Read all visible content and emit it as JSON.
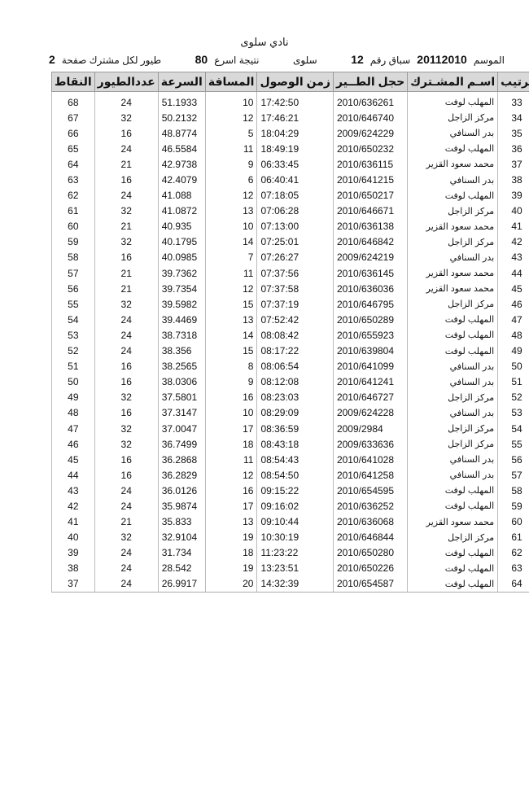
{
  "header": {
    "club": "نادي سلوى",
    "season_label": "الموسم",
    "season": "20112010",
    "race_label": "سباق رقم",
    "race_number": "12",
    "location": "سلوى",
    "fastest_label": "نتيجة اسرع",
    "fastest_count": "80",
    "per_member_label": "طيور لكل مشترك صفحة",
    "page": "2"
  },
  "columns": [
    "ترتيب",
    "اسـم المشـترك",
    "حجل الطــير",
    "زمن الوصول",
    "المسافة",
    "السرعة",
    "عددالطيور",
    "النقاط"
  ],
  "rows": [
    [
      "33",
      "المهلب لوفت",
      "2010/636261",
      "17:42:50",
      "10",
      "51.1933",
      "24",
      "68"
    ],
    [
      "34",
      "مركز الزاجل",
      "2010/646740",
      "17:46:21",
      "12",
      "50.2132",
      "32",
      "67"
    ],
    [
      "35",
      "بدر السنافي",
      "2009/624229",
      "18:04:29",
      "5",
      "48.8774",
      "16",
      "66"
    ],
    [
      "36",
      "المهلب لوفت",
      "2010/650232",
      "18:49:19",
      "11",
      "46.5584",
      "24",
      "65"
    ],
    [
      "37",
      "محمد سعود القزير",
      "2010/636115",
      "06:33:45",
      "9",
      "42.9738",
      "21",
      "64"
    ],
    [
      "38",
      "بدر السنافي",
      "2010/641215",
      "06:40:41",
      "6",
      "42.4079",
      "16",
      "63"
    ],
    [
      "39",
      "المهلب لوفت",
      "2010/650217",
      "07:18:05",
      "12",
      "41.088",
      "24",
      "62"
    ],
    [
      "40",
      "مركز الزاجل",
      "2010/646671",
      "07:06:28",
      "13",
      "41.0872",
      "32",
      "61"
    ],
    [
      "41",
      "محمد سعود القزير",
      "2010/636138",
      "07:13:00",
      "10",
      "40.935",
      "21",
      "60"
    ],
    [
      "42",
      "مركز الزاجل",
      "2010/646842",
      "07:25:01",
      "14",
      "40.1795",
      "32",
      "59"
    ],
    [
      "43",
      "بدر السنافي",
      "2009/624219",
      "07:26:27",
      "7",
      "40.0985",
      "16",
      "58"
    ],
    [
      "44",
      "محمد سعود القزير",
      "2010/636145",
      "07:37:56",
      "11",
      "39.7362",
      "21",
      "57"
    ],
    [
      "45",
      "محمد سعود القزير",
      "2010/636036",
      "07:37:58",
      "12",
      "39.7354",
      "21",
      "56"
    ],
    [
      "46",
      "مركز الزاجل",
      "2010/646795",
      "07:37:19",
      "15",
      "39.5982",
      "32",
      "55"
    ],
    [
      "47",
      "المهلب لوفت",
      "2010/650289",
      "07:52:42",
      "13",
      "39.4469",
      "24",
      "54"
    ],
    [
      "48",
      "المهلب لوفت",
      "2010/655923",
      "08:08:42",
      "14",
      "38.7318",
      "24",
      "53"
    ],
    [
      "49",
      "المهلب لوفت",
      "2010/639804",
      "08:17:22",
      "15",
      "38.356",
      "24",
      "52"
    ],
    [
      "50",
      "بدر السنافي",
      "2010/641099",
      "08:06:54",
      "8",
      "38.2565",
      "16",
      "51"
    ],
    [
      "51",
      "بدر السنافي",
      "2010/641241",
      "08:12:08",
      "9",
      "38.0306",
      "16",
      "50"
    ],
    [
      "52",
      "مركز الزاجل",
      "2010/646727",
      "08:23:03",
      "16",
      "37.5801",
      "32",
      "49"
    ],
    [
      "53",
      "بدر السنافي",
      "2009/624228",
      "08:29:09",
      "10",
      "37.3147",
      "16",
      "48"
    ],
    [
      "54",
      "مركز الزاجل",
      "2009/2984",
      "08:36:59",
      "17",
      "37.0047",
      "32",
      "47"
    ],
    [
      "55",
      "مركز الزاجل",
      "2009/633636",
      "08:43:18",
      "18",
      "36.7499",
      "32",
      "46"
    ],
    [
      "56",
      "بدر السنافي",
      "2010/641028",
      "08:54:43",
      "11",
      "36.2868",
      "16",
      "45"
    ],
    [
      "57",
      "بدر السنافي",
      "2010/641258",
      "08:54:50",
      "12",
      "36.2829",
      "16",
      "44"
    ],
    [
      "58",
      "المهلب لوفت",
      "2010/654595",
      "09:15:22",
      "16",
      "36.0126",
      "24",
      "43"
    ],
    [
      "59",
      "المهلب لوفت",
      "2010/636252",
      "09:16:02",
      "17",
      "35.9874",
      "24",
      "42"
    ],
    [
      "60",
      "محمد سعود القزير",
      "2010/636068",
      "09:10:44",
      "13",
      "35.833",
      "21",
      "41"
    ],
    [
      "61",
      "مركز الزاجل",
      "2010/646844",
      "10:30:19",
      "19",
      "32.9104",
      "32",
      "40"
    ],
    [
      "62",
      "المهلب لوفت",
      "2010/650280",
      "11:23:22",
      "18",
      "31.734",
      "24",
      "39"
    ],
    [
      "63",
      "المهلب لوفت",
      "2010/650226",
      "13:23:51",
      "19",
      "28.542",
      "24",
      "38"
    ],
    [
      "64",
      "المهلب لوفت",
      "2010/654587",
      "14:32:39",
      "20",
      "26.9917",
      "24",
      "37"
    ]
  ]
}
